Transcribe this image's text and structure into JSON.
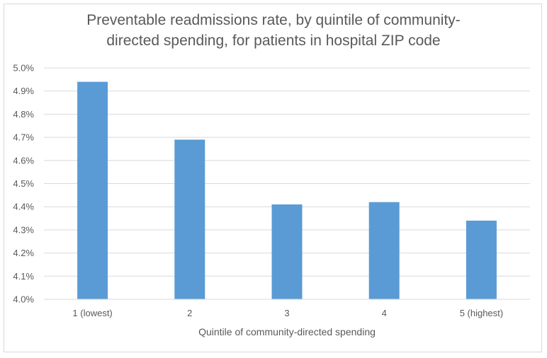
{
  "chart_data": {
    "type": "bar",
    "title_lines": [
      "Preventable readmissions rate, by quintile of community-",
      "directed spending, for patients in hospital ZIP code"
    ],
    "categories": [
      "1 (lowest)",
      "2",
      "3",
      "4",
      "5 (highest)"
    ],
    "values": [
      4.94,
      4.69,
      4.41,
      4.42,
      4.34
    ],
    "value_unit": "%",
    "xlabel": "Quintile of community-directed spending",
    "ylabel": "",
    "ylim": [
      4.0,
      5.0
    ],
    "ytick_step": 0.1,
    "ytick_labels": [
      "4.0%",
      "4.1%",
      "4.2%",
      "4.3%",
      "4.4%",
      "4.5%",
      "4.6%",
      "4.7%",
      "4.8%",
      "4.9%",
      "5.0%"
    ],
    "grid": true,
    "legend": "none",
    "bar_color": "#5b9bd5",
    "grid_color": "#d9d9d9",
    "text_color": "#595959"
  }
}
